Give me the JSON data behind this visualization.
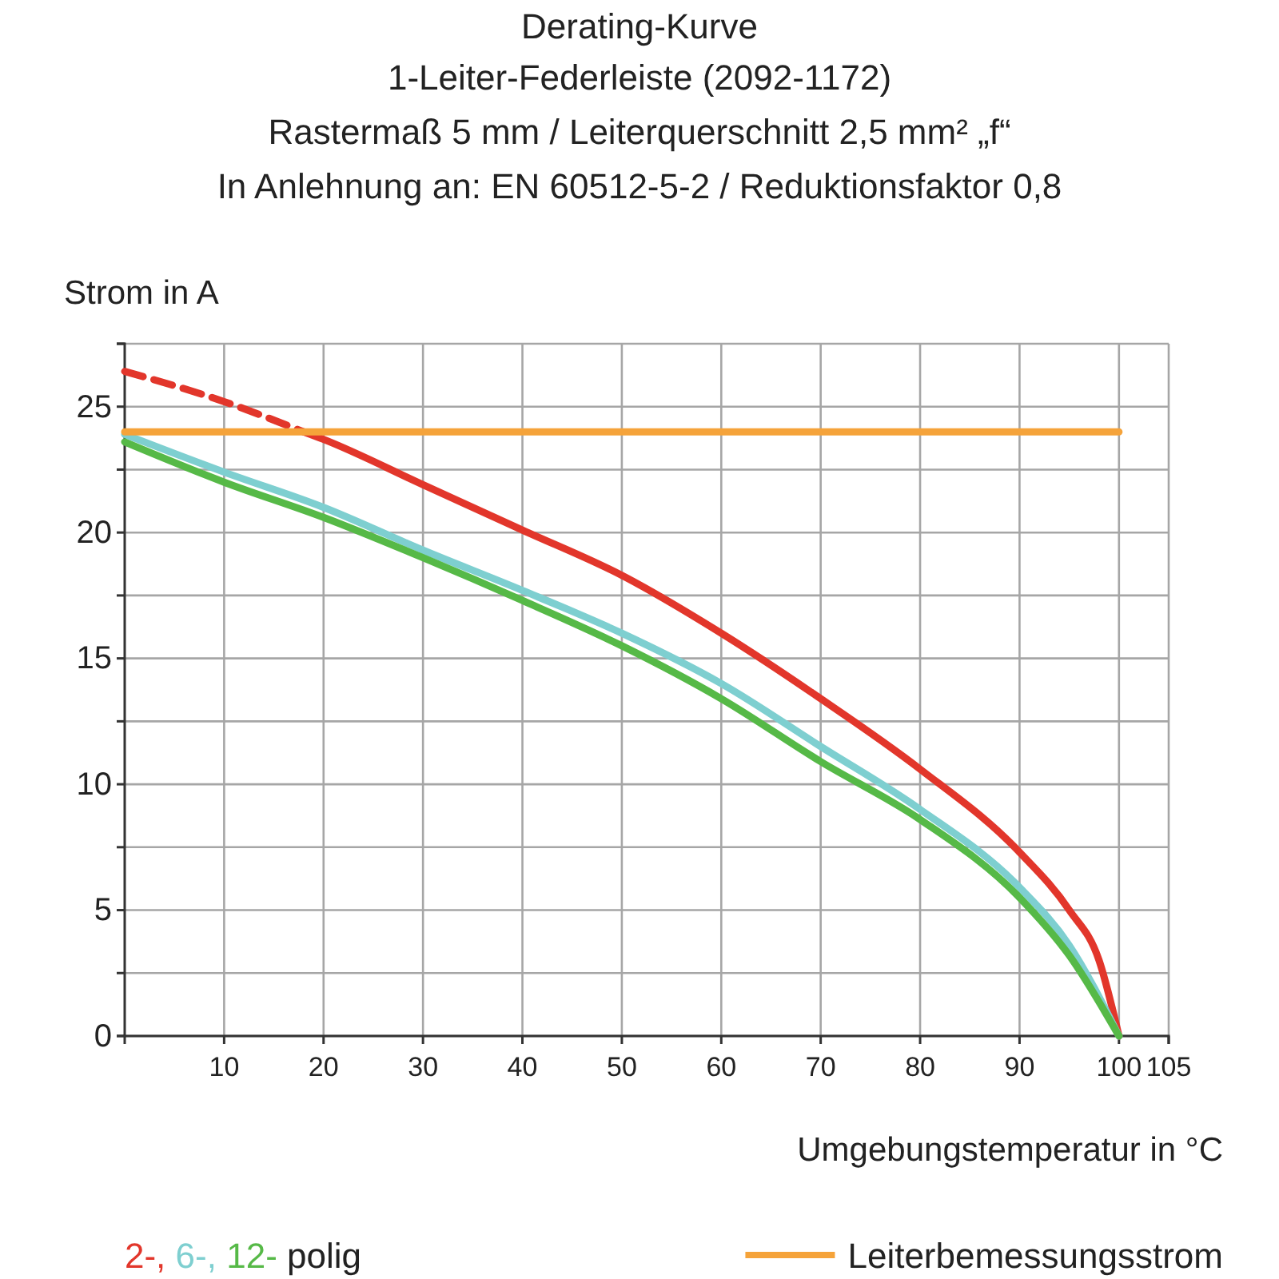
{
  "chart_data": {
    "type": "line",
    "title": "Derating-Kurve",
    "subtitle": "1-Leiter-Federleiste (2092-1172)\nRastermaß 5 mm / Leiterquerschnitt 2,5 mm² „f“\nIn Anlehnung an: EN 60512-5-2 / Reduktionsfaktor 0,8",
    "xlabel": "Umgebungstemperatur in °C",
    "ylabel": "Strom in A",
    "legend_title": "polig",
    "xlim": [
      0,
      105
    ],
    "ylim": [
      0,
      27.5
    ],
    "xticks": [
      10,
      20,
      30,
      40,
      50,
      60,
      70,
      80,
      90,
      100,
      105
    ],
    "yticks": [
      0,
      {
        "value": 2.5,
        "label": null
      },
      5,
      {
        "value": 7.5,
        "label": null
      },
      10,
      {
        "value": 12.5,
        "label": null
      },
      15,
      {
        "value": 17.5,
        "label": null
      },
      20,
      {
        "value": 22.5,
        "label": null
      },
      25,
      {
        "value": 27.5,
        "label": null
      }
    ],
    "grid": true,
    "legend": "bottom",
    "line_style": "solid",
    "series": [
      {
        "color": "#e2362b",
        "line_style": "dashed",
        "x": [
          0,
          10,
          18
        ],
        "values": [
          26.4,
          25.2,
          24.0
        ]
      },
      {
        "name": "2-,",
        "color": "#e2362b",
        "x": [
          18,
          20,
          30,
          40,
          50,
          60,
          70,
          80,
          90,
          95,
          98,
          100
        ],
        "values": [
          24.0,
          23.7,
          21.9,
          20.1,
          18.3,
          16.0,
          13.4,
          10.6,
          7.3,
          5.0,
          3.0,
          0
        ]
      },
      {
        "name": "6-,",
        "color": "#7ecfd0",
        "x": [
          0,
          10,
          20,
          30,
          40,
          50,
          60,
          70,
          80,
          90,
          95,
          100
        ],
        "values": [
          23.9,
          22.4,
          21.0,
          19.3,
          17.7,
          16.0,
          14.0,
          11.5,
          9.0,
          5.9,
          3.6,
          0
        ]
      },
      {
        "name": "12-",
        "color": "#56b947",
        "x": [
          0,
          10,
          20,
          30,
          40,
          50,
          60,
          70,
          80,
          90,
          95,
          100
        ],
        "values": [
          23.6,
          22.0,
          20.6,
          19.0,
          17.3,
          15.5,
          13.4,
          10.9,
          8.6,
          5.5,
          3.2,
          0
        ]
      },
      {
        "name": "Leiterbemessungsstrom",
        "color": "#f5a33a",
        "x": [
          0,
          100
        ],
        "values": [
          24,
          24
        ]
      }
    ]
  }
}
